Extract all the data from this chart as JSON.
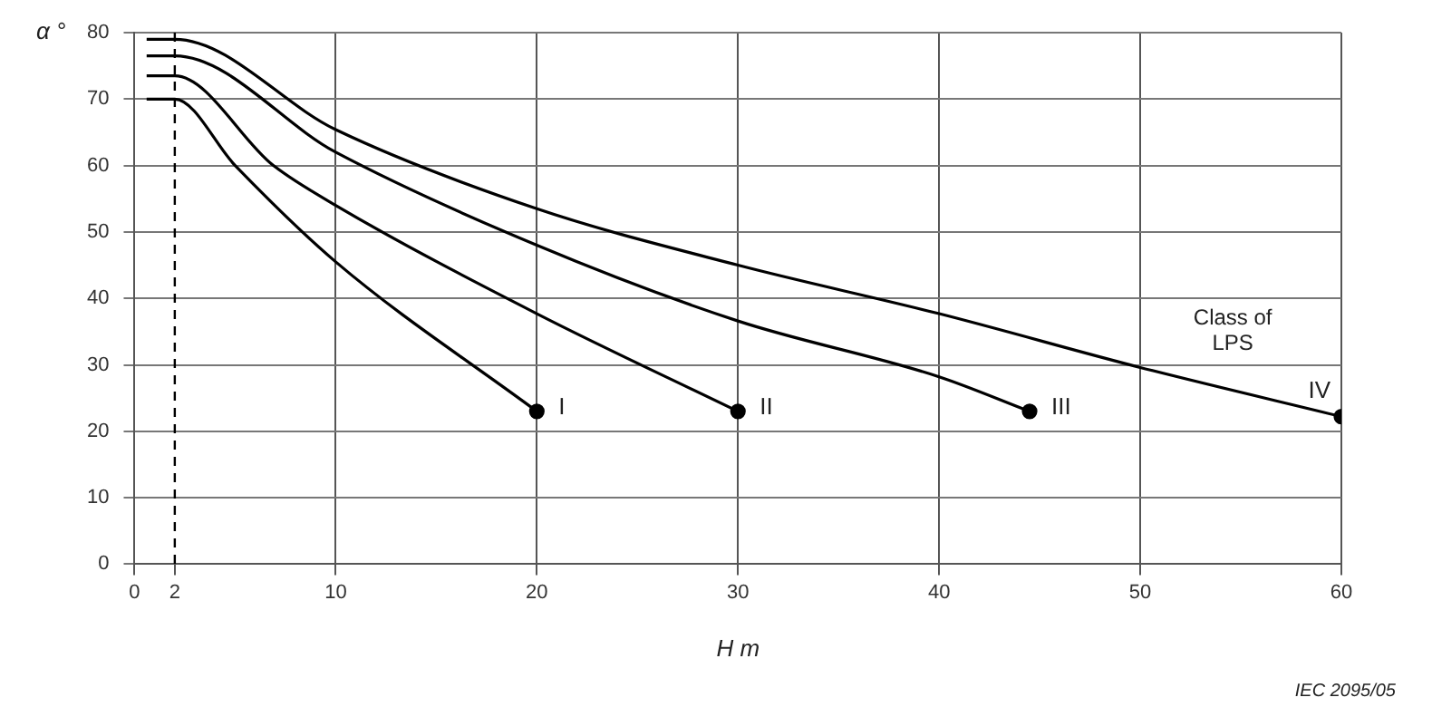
{
  "chart_data": {
    "type": "line",
    "xlabel": "H m",
    "ylabel": "α °",
    "xlim": [
      0,
      60
    ],
    "xticks": [
      0,
      2,
      10,
      20,
      30,
      40,
      50,
      60
    ],
    "ylim": [
      0,
      80
    ],
    "yticks": [
      0,
      10,
      20,
      30,
      40,
      50,
      60,
      70,
      80
    ],
    "grid": true,
    "legend": false,
    "line_style": "solid",
    "ref_lines": [
      {
        "axis": "x",
        "value": 2,
        "line_style": "dashed"
      }
    ],
    "annotations": [
      "Class of LPS",
      "IEC 2095/05"
    ],
    "series": [
      {
        "name": "I",
        "color": "#000000",
        "x": [
          0.6,
          2,
          5,
          10,
          20
        ],
        "values": [
          70,
          70,
          60,
          45.5,
          23
        ]
      },
      {
        "name": "II",
        "color": "#000000",
        "x": [
          0.6,
          2,
          6.9,
          10,
          20,
          30
        ],
        "values": [
          73.5,
          73.5,
          60,
          54,
          37.7,
          23
        ]
      },
      {
        "name": "III",
        "color": "#000000",
        "x": [
          0.6,
          2,
          10,
          20,
          30,
          40,
          44.5
        ],
        "values": [
          76.5,
          76.5,
          62,
          48,
          36.6,
          28.2,
          23
        ]
      },
      {
        "name": "IV",
        "color": "#000000",
        "x": [
          0.6,
          2,
          10,
          20,
          30,
          40,
          50,
          60
        ],
        "values": [
          79,
          79,
          65.4,
          53.5,
          45,
          37.7,
          29.6,
          22.2
        ]
      }
    ]
  }
}
